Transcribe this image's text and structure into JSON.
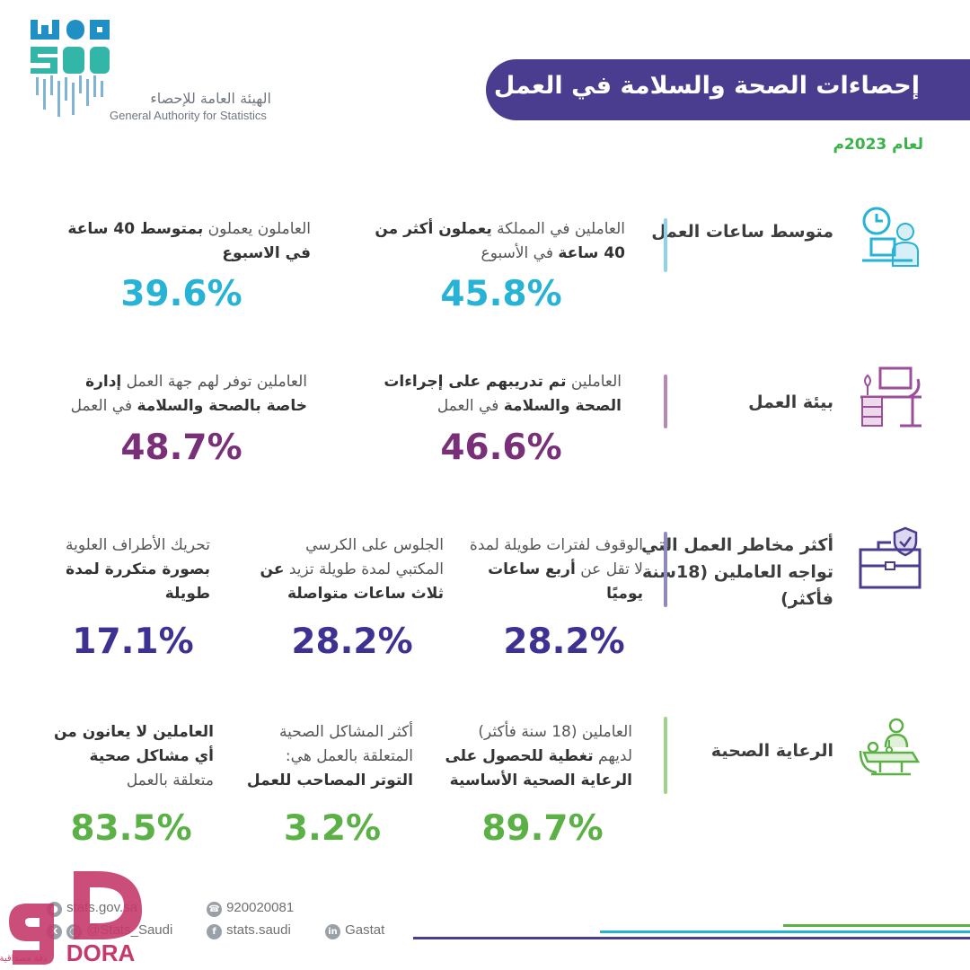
{
  "logo": {
    "mark_text": "GASTAT",
    "arabic": "الهيئة العامة للإحصاء",
    "english": "General Authority for Statistics"
  },
  "header": {
    "title": "إحصاءات الصحة والسلامة في العمل",
    "year": "لعام 2023م"
  },
  "colors": {
    "banner": "#4a3d8f",
    "cyan": "#26b3d6",
    "purple": "#7a2f79",
    "navy": "#3d3291",
    "green": "#5bb046"
  },
  "sections": [
    {
      "category": "متوسط ساعات العمل",
      "icon": "person-at-desk-clock-icon",
      "stats": [
        {
          "pre": "العاملين في المملكة ",
          "bold": "يعملون أكثر من 40 ساعة",
          "post": " في الأسبوع",
          "value": "45.8%"
        },
        {
          "pre": "العاملون يعملون ",
          "bold": "بمتوسط 40 ساعة في الاسبوع",
          "post": "",
          "value": "39.6%"
        }
      ]
    },
    {
      "category": "بيئة العمل",
      "icon": "office-desk-icon",
      "stats": [
        {
          "pre": "العاملين ",
          "bold": "تم تدريبهم على إجراءات الصحة والسلامة",
          "post": " في العمل",
          "value": "46.6%"
        },
        {
          "pre": "العاملين توفر لهم جهة العمل ",
          "bold": "إدارة خاصة بالصحة والسلامة",
          "post": " في العمل",
          "value": "48.7%"
        }
      ]
    },
    {
      "category": "أكثر مخاطر العمل التي تواجه العاملين (18سنة فأكثر)",
      "icon": "briefcase-shield-icon",
      "stats": [
        {
          "pre": "الوقوف لفترات طويلة لمدة لا تقل عن ",
          "bold": "أربع ساعات يوميًا",
          "post": "",
          "value": "28.2%"
        },
        {
          "pre": "الجلوس على الكرسي المكتبي لمدة طويلة تزيد ",
          "bold": "عن ثلاث ساعات متواصلة",
          "post": "",
          "value": "28.2%"
        },
        {
          "pre": "تحريك الأطراف العلوية ",
          "bold": "بصورة متكررة لمدة طويلة",
          "post": "",
          "value": "17.1%"
        }
      ]
    },
    {
      "category": "الرعاية الصحية",
      "icon": "healthcare-doctor-icon",
      "stats": [
        {
          "pre": "العاملين (18 سنة فأكثر) لديهم ",
          "bold": "تغطية للحصول على الرعاية الصحية الأساسية",
          "post": "",
          "value": "89.7%"
        },
        {
          "pre": "أكثر المشاكل الصحية المتعلقة بالعمل هي: ",
          "bold": "التوتر المصاحب للعمل",
          "post": "",
          "value": "3.2%"
        },
        {
          "pre": "",
          "bold": "العاملين لا يعانون من أي مشاكل صحية",
          "post": " متعلقة بالعمل",
          "value": "83.5%"
        }
      ]
    }
  ],
  "footer": {
    "website": "stats.gov.sa",
    "phone": "920020081",
    "twitter_instagram": "@Stats_Saudi",
    "facebook": "stats.saudi",
    "linkedin": "Gastat"
  },
  "watermark": {
    "brand": "DORA",
    "arabic": "دقة مصداقية"
  }
}
